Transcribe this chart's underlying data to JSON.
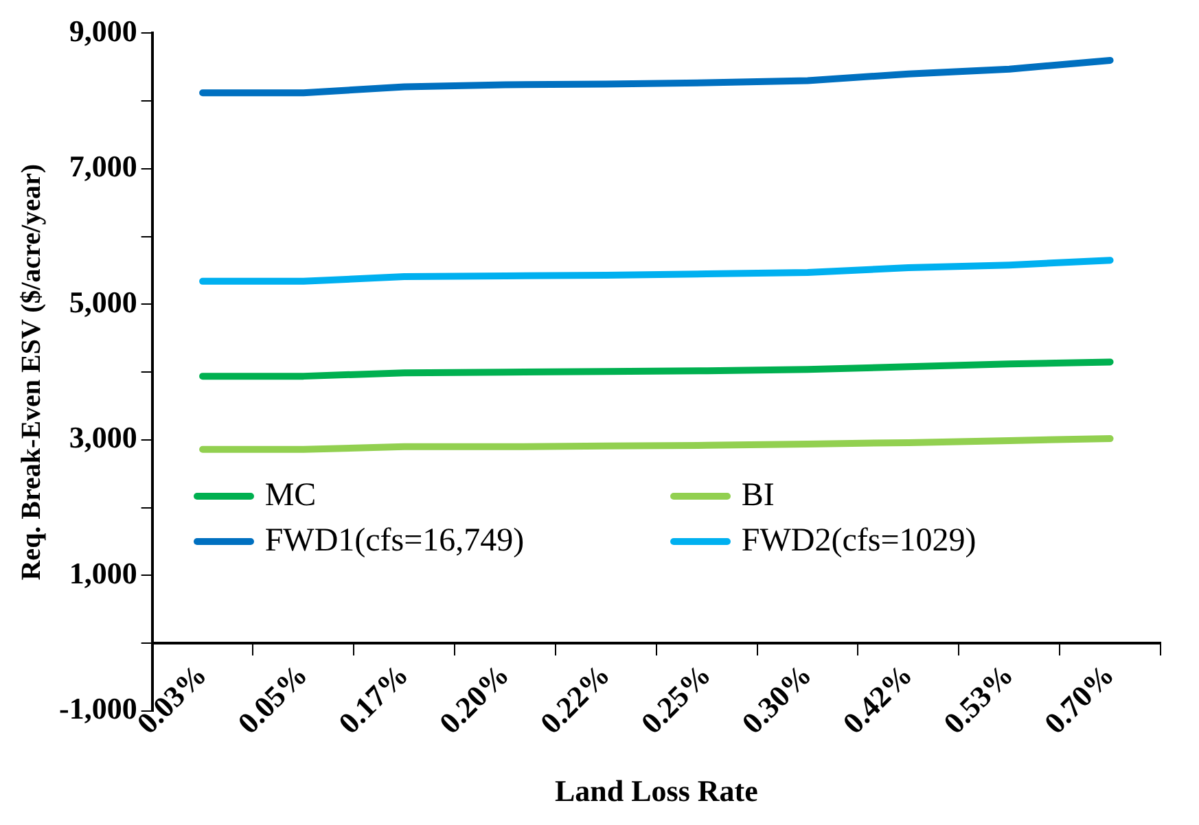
{
  "chart_data": {
    "type": "line",
    "xlabel": "Land Loss Rate",
    "ylabel": "Req. Break-Even ESV ($/acre/year)",
    "categories": [
      "0.03%",
      "0.05%",
      "0.17%",
      "0.20%",
      "0.22%",
      "0.25%",
      "0.30%",
      "0.42%",
      "0.53%",
      "0.70%"
    ],
    "series": [
      {
        "name": "MC",
        "color": "#00b050",
        "values": [
          3940,
          3940,
          3990,
          4000,
          4010,
          4020,
          4040,
          4080,
          4120,
          4150
        ]
      },
      {
        "name": "BI",
        "color": "#92d050",
        "values": [
          2860,
          2860,
          2900,
          2900,
          2910,
          2920,
          2940,
          2960,
          2990,
          3020
        ]
      },
      {
        "name": "FWD1(cfs=16,749)",
        "color": "#0070c0",
        "values": [
          8120,
          8120,
          8210,
          8240,
          8250,
          8270,
          8300,
          8400,
          8470,
          8600
        ]
      },
      {
        "name": "FWD2(cfs=1029)",
        "color": "#00b0f0",
        "values": [
          5340,
          5340,
          5410,
          5420,
          5430,
          5450,
          5470,
          5540,
          5580,
          5650
        ]
      }
    ],
    "ylim": [
      -1000,
      9000
    ],
    "yticks": [
      {
        "value": -1000,
        "label": "-1,000"
      },
      {
        "value": 0,
        "label": null
      },
      {
        "value": 1000,
        "label": "1,000"
      },
      {
        "value": 2000,
        "label": null
      },
      {
        "value": 3000,
        "label": "3,000"
      },
      {
        "value": 4000,
        "label": null
      },
      {
        "value": 5000,
        "label": "5,000"
      },
      {
        "value": 6000,
        "label": null
      },
      {
        "value": 7000,
        "label": "7,000"
      },
      {
        "value": 8000,
        "label": null
      },
      {
        "value": 9000,
        "label": "9,000"
      }
    ],
    "grid": false,
    "legend": "bottom",
    "marker": "none",
    "line_style": "solid"
  }
}
